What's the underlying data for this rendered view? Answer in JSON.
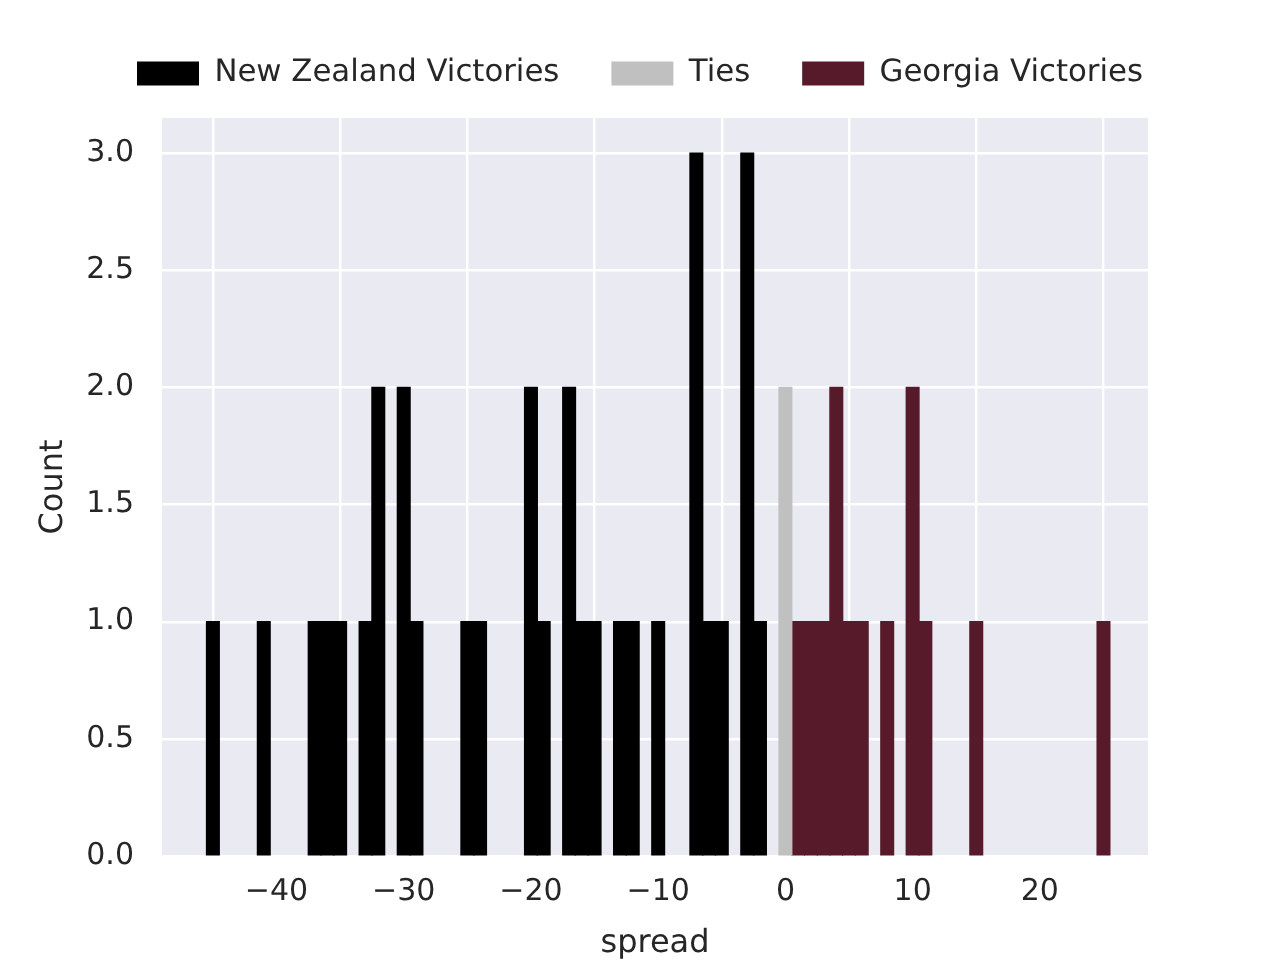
{
  "chart_data": {
    "type": "histogram",
    "xlabel": "spread",
    "ylabel": "Count",
    "bins": [
      -45.5,
      -44.5,
      -43.5,
      -42.5,
      -41.5,
      -40.5,
      -39.5,
      -38.5,
      -37.5,
      -36.5,
      -35.5,
      -34.5,
      -33.5,
      -32.5,
      -31.5,
      -30.5,
      -29.5,
      -28.5,
      -27.5,
      -26.5,
      -25.5,
      -24.5,
      -23.5,
      -22.5,
      -21.5,
      -20.5,
      -19.5,
      -18.5,
      -17.5,
      -16.5,
      -15.5,
      -14.5,
      -13.5,
      -12.5,
      -11.5,
      -10.5,
      -9.5,
      -8.5,
      -7.5,
      -6.5,
      -5.5,
      -4.5,
      -3.5,
      -2.5,
      -1.5,
      -0.5,
      0.5,
      1.5,
      2.5,
      3.5,
      4.5,
      5.5,
      6.5,
      7.5,
      8.5,
      9.5,
      10.5,
      11.5,
      12.5,
      13.5,
      14.5,
      15.5,
      16.5,
      17.5,
      18.5,
      19.5,
      20.5,
      21.5,
      22.5,
      23.5,
      24.5,
      25.5
    ],
    "series": [
      {
        "name": "New Zealand Victories",
        "color": "#000000",
        "values": [
          1,
          0,
          0,
          0,
          1,
          0,
          0,
          0,
          1,
          1,
          1,
          0,
          1,
          2,
          0,
          2,
          1,
          0,
          0,
          0,
          1,
          1,
          0,
          0,
          0,
          2,
          1,
          0,
          2,
          1,
          1,
          0,
          1,
          1,
          0,
          1,
          0,
          0,
          3,
          1,
          1,
          0,
          3,
          1,
          0,
          0,
          0,
          0,
          0,
          0,
          0,
          0,
          0,
          0,
          0,
          0,
          0,
          0,
          0,
          0,
          0,
          0,
          0,
          0,
          0,
          0,
          0,
          0,
          0,
          0,
          0
        ]
      },
      {
        "name": "Ties",
        "color": "#c0c0c0",
        "values": [
          0,
          0,
          0,
          0,
          0,
          0,
          0,
          0,
          0,
          0,
          0,
          0,
          0,
          0,
          0,
          0,
          0,
          0,
          0,
          0,
          0,
          0,
          0,
          0,
          0,
          0,
          0,
          0,
          0,
          0,
          0,
          0,
          0,
          0,
          0,
          0,
          0,
          0,
          0,
          0,
          0,
          0,
          0,
          0,
          0,
          2,
          0,
          0,
          0,
          0,
          0,
          0,
          0,
          0,
          0,
          0,
          0,
          0,
          0,
          0,
          0,
          0,
          0,
          0,
          0,
          0,
          0,
          0,
          0,
          0,
          0
        ]
      },
      {
        "name": "Georgia Victories",
        "color": "#571a2a",
        "values": [
          0,
          0,
          0,
          0,
          0,
          0,
          0,
          0,
          0,
          0,
          0,
          0,
          0,
          0,
          0,
          0,
          0,
          0,
          0,
          0,
          0,
          0,
          0,
          0,
          0,
          0,
          0,
          0,
          0,
          0,
          0,
          0,
          0,
          0,
          0,
          0,
          0,
          0,
          0,
          0,
          0,
          0,
          0,
          0,
          0,
          0,
          1,
          1,
          1,
          2,
          1,
          1,
          0,
          1,
          0,
          2,
          1,
          0,
          0,
          0,
          1,
          0,
          0,
          0,
          0,
          0,
          0,
          0,
          0,
          0,
          1
        ]
      }
    ],
    "xlim": [
      -49,
      28.5
    ],
    "xticks": [
      {
        "value": -40,
        "label": "−40"
      },
      {
        "value": -30,
        "label": "−30"
      },
      {
        "value": -20,
        "label": "−20"
      },
      {
        "value": -10,
        "label": "−10"
      },
      0,
      10,
      20
    ],
    "ylim": [
      0,
      3.15
    ],
    "yticks": [
      {
        "value": 0,
        "label": "0.0"
      },
      0.5,
      {
        "value": 1,
        "label": "1.0"
      },
      1.5,
      {
        "value": 2,
        "label": "2.0"
      },
      2.5,
      {
        "value": 3,
        "label": "3.0"
      }
    ],
    "grid": true,
    "legend": "top"
  }
}
